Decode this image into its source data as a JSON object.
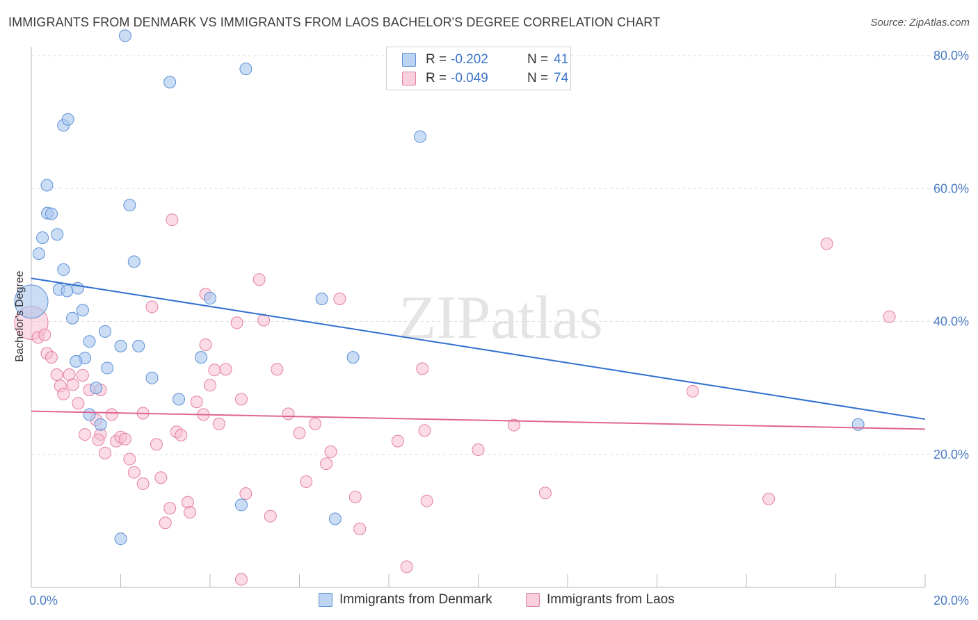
{
  "header": {
    "title": "IMMIGRANTS FROM DENMARK VS IMMIGRANTS FROM LAOS BACHELOR'S DEGREE CORRELATION CHART",
    "source": "Source: ZipAtlas.com"
  },
  "watermark": "ZIPatlas",
  "legend": {
    "rows": [
      {
        "r_label": "R =",
        "r_value": "-0.202",
        "n_label": "N =",
        "n_value": "41"
      },
      {
        "r_label": "R =",
        "r_value": "-0.049",
        "n_label": "N =",
        "n_value": "74"
      }
    ]
  },
  "bottom_legend": {
    "items": [
      "Immigrants from Denmark",
      "Immigrants from Laos"
    ]
  },
  "colors": {
    "denmark_fill": "#a9c7ee",
    "denmark_stroke": "#5b8fd6",
    "denmark_line": "#2f6fd0",
    "laos_fill": "#f7bdd0",
    "laos_stroke": "#e27fa0",
    "laos_line": "#e0658f",
    "tick_text": "#4a7cc4",
    "grid": "#dddddd"
  },
  "chart_data": {
    "type": "scatter",
    "title": "IMMIGRANTS FROM DENMARK VS IMMIGRANTS FROM LAOS BACHELOR'S DEGREE CORRELATION CHART",
    "xlabel": "",
    "ylabel": "Bachelor's Degree",
    "xlim": [
      0,
      20
    ],
    "ylim": [
      0,
      80
    ],
    "x_ticks": [
      0,
      20
    ],
    "x_tick_labels": [
      "0.0%",
      "20.0%"
    ],
    "y_ticks": [
      20,
      40,
      60,
      80
    ],
    "y_tick_labels": [
      "20.0%",
      "40.0%",
      "60.0%",
      "80.0%"
    ],
    "grid": true,
    "legend_position": "top-center",
    "series": [
      {
        "name": "Immigrants from Denmark",
        "r": -0.202,
        "n": 41,
        "trend": {
          "x": [
            0,
            20
          ],
          "y": [
            46.5,
            25.3
          ]
        },
        "points": [
          {
            "x": 0.0,
            "y": 43.0,
            "big": true
          },
          {
            "x": 0.17,
            "y": 50.2
          },
          {
            "x": 0.25,
            "y": 52.6
          },
          {
            "x": 0.35,
            "y": 60.5
          },
          {
            "x": 0.36,
            "y": 56.3
          },
          {
            "x": 0.45,
            "y": 56.2
          },
          {
            "x": 0.58,
            "y": 53.1
          },
          {
            "x": 0.72,
            "y": 69.5
          },
          {
            "x": 0.82,
            "y": 70.4
          },
          {
            "x": 0.72,
            "y": 47.8
          },
          {
            "x": 0.62,
            "y": 44.8
          },
          {
            "x": 0.8,
            "y": 44.6
          },
          {
            "x": 1.04,
            "y": 45.0
          },
          {
            "x": 1.15,
            "y": 41.7
          },
          {
            "x": 0.92,
            "y": 40.5
          },
          {
            "x": 1.3,
            "y": 37.0
          },
          {
            "x": 1.65,
            "y": 38.5
          },
          {
            "x": 1.2,
            "y": 34.5
          },
          {
            "x": 1.0,
            "y": 34.0
          },
          {
            "x": 2.2,
            "y": 57.5
          },
          {
            "x": 3.1,
            "y": 76.0
          },
          {
            "x": 4.8,
            "y": 78.0
          },
          {
            "x": 2.3,
            "y": 49.0
          },
          {
            "x": 1.7,
            "y": 33.0
          },
          {
            "x": 2.4,
            "y": 36.3
          },
          {
            "x": 2.0,
            "y": 36.3
          },
          {
            "x": 2.7,
            "y": 31.5
          },
          {
            "x": 3.8,
            "y": 34.6
          },
          {
            "x": 1.3,
            "y": 26.0
          },
          {
            "x": 1.55,
            "y": 24.5
          },
          {
            "x": 3.3,
            "y": 28.3
          },
          {
            "x": 4.0,
            "y": 43.5
          },
          {
            "x": 6.5,
            "y": 43.4
          },
          {
            "x": 7.2,
            "y": 34.6
          },
          {
            "x": 8.7,
            "y": 67.8
          },
          {
            "x": 2.1,
            "y": 83.0
          },
          {
            "x": 1.45,
            "y": 30.0
          },
          {
            "x": 4.7,
            "y": 12.4
          },
          {
            "x": 6.8,
            "y": 10.3
          },
          {
            "x": 2.0,
            "y": 7.3
          },
          {
            "x": 18.5,
            "y": 24.5
          }
        ]
      },
      {
        "name": "Immigrants from Laos",
        "r": -0.049,
        "n": 74,
        "trend": {
          "x": [
            0,
            20
          ],
          "y": [
            26.5,
            23.8
          ]
        },
        "points": [
          {
            "x": 0.0,
            "y": 39.8,
            "big": true
          },
          {
            "x": 0.15,
            "y": 37.6
          },
          {
            "x": 0.3,
            "y": 38.0
          },
          {
            "x": 0.35,
            "y": 35.2
          },
          {
            "x": 0.45,
            "y": 34.6
          },
          {
            "x": 0.57,
            "y": 32.0
          },
          {
            "x": 0.65,
            "y": 30.3
          },
          {
            "x": 0.72,
            "y": 29.1
          },
          {
            "x": 0.85,
            "y": 32.0
          },
          {
            "x": 0.93,
            "y": 30.5
          },
          {
            "x": 1.05,
            "y": 27.7
          },
          {
            "x": 1.15,
            "y": 31.9
          },
          {
            "x": 1.3,
            "y": 29.7
          },
          {
            "x": 1.55,
            "y": 29.7
          },
          {
            "x": 1.45,
            "y": 25.2
          },
          {
            "x": 1.2,
            "y": 23.0
          },
          {
            "x": 1.55,
            "y": 23.0
          },
          {
            "x": 1.65,
            "y": 20.2
          },
          {
            "x": 1.8,
            "y": 26.0
          },
          {
            "x": 1.9,
            "y": 22.0
          },
          {
            "x": 2.0,
            "y": 22.6
          },
          {
            "x": 2.1,
            "y": 22.3
          },
          {
            "x": 2.2,
            "y": 19.3
          },
          {
            "x": 2.3,
            "y": 17.3
          },
          {
            "x": 2.5,
            "y": 15.6
          },
          {
            "x": 2.5,
            "y": 26.2
          },
          {
            "x": 2.7,
            "y": 42.2
          },
          {
            "x": 2.8,
            "y": 21.5
          },
          {
            "x": 2.9,
            "y": 16.5
          },
          {
            "x": 3.0,
            "y": 9.7
          },
          {
            "x": 3.1,
            "y": 11.9
          },
          {
            "x": 3.15,
            "y": 55.3
          },
          {
            "x": 3.25,
            "y": 23.4
          },
          {
            "x": 3.35,
            "y": 22.9
          },
          {
            "x": 3.5,
            "y": 12.8
          },
          {
            "x": 3.55,
            "y": 11.3
          },
          {
            "x": 3.7,
            "y": 27.9
          },
          {
            "x": 3.85,
            "y": 26.0
          },
          {
            "x": 3.9,
            "y": 36.5
          },
          {
            "x": 3.9,
            "y": 44.1
          },
          {
            "x": 4.0,
            "y": 30.4
          },
          {
            "x": 4.1,
            "y": 32.7
          },
          {
            "x": 4.2,
            "y": 24.6
          },
          {
            "x": 4.35,
            "y": 32.8
          },
          {
            "x": 4.6,
            "y": 39.8
          },
          {
            "x": 4.7,
            "y": 28.3
          },
          {
            "x": 4.8,
            "y": 14.1
          },
          {
            "x": 4.7,
            "y": 1.2
          },
          {
            "x": 5.1,
            "y": 46.3
          },
          {
            "x": 5.2,
            "y": 40.2
          },
          {
            "x": 5.35,
            "y": 10.7
          },
          {
            "x": 5.5,
            "y": 32.8
          },
          {
            "x": 5.75,
            "y": 26.1
          },
          {
            "x": 6.0,
            "y": 23.2
          },
          {
            "x": 6.15,
            "y": 15.9
          },
          {
            "x": 6.35,
            "y": 24.6
          },
          {
            "x": 6.6,
            "y": 18.6
          },
          {
            "x": 6.7,
            "y": 20.4
          },
          {
            "x": 6.9,
            "y": 43.4
          },
          {
            "x": 7.25,
            "y": 13.6
          },
          {
            "x": 7.35,
            "y": 8.8
          },
          {
            "x": 8.2,
            "y": 22.0
          },
          {
            "x": 8.4,
            "y": 3.1
          },
          {
            "x": 8.75,
            "y": 32.9
          },
          {
            "x": 8.8,
            "y": 23.6
          },
          {
            "x": 8.85,
            "y": 13.0
          },
          {
            "x": 10.0,
            "y": 20.7
          },
          {
            "x": 10.8,
            "y": 24.4
          },
          {
            "x": 11.5,
            "y": 14.2
          },
          {
            "x": 14.8,
            "y": 29.5
          },
          {
            "x": 16.5,
            "y": 13.3
          },
          {
            "x": 17.8,
            "y": 51.7
          },
          {
            "x": 19.2,
            "y": 40.7
          },
          {
            "x": 1.5,
            "y": 22.2
          }
        ]
      }
    ]
  }
}
